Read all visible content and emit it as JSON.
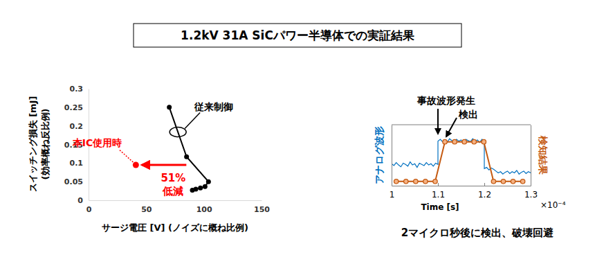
{
  "title": "1.2kV 31A SiCパワー半導体での実証結果",
  "chart_data": [
    {
      "type": "line",
      "xlabel": "サージ電圧 [V] (ノイズに概ね比例)",
      "ylabel": "スイッチング損失 [mJ]\n(効率概ね反比例)",
      "xlim": [
        0,
        150
      ],
      "xticks": [
        0,
        50,
        100,
        150
      ],
      "ylim": [
        0,
        0.3
      ],
      "yticks": [
        0,
        0.05,
        0.1,
        0.15,
        0.2,
        0.25,
        0.3
      ],
      "grid": false,
      "series": [
        {
          "name": "従来制御",
          "color": "#000000",
          "marker": "circle",
          "line_style": "solid",
          "x": [
            70,
            85,
            104,
            101,
            97,
            93,
            90
          ],
          "values": [
            0.25,
            0.117,
            0.05,
            0.037,
            0.033,
            0.03,
            0.027
          ]
        },
        {
          "name": "本IC使用時",
          "color": "#ff0000",
          "marker": "circle",
          "type": "scatter",
          "x": [
            41
          ],
          "values": [
            0.095
          ]
        }
      ],
      "annotations": [
        "51%",
        "低減"
      ]
    },
    {
      "type": "line",
      "title": "2マイクロ秒後に検出、破壊回避",
      "xlabel": "Time [s]",
      "xlim": [
        1,
        1.3
      ],
      "xticks": [
        1,
        1.1,
        1.2,
        1.3
      ],
      "ylim": [
        0,
        1
      ],
      "y2lim": [
        0,
        1
      ],
      "tick_labels": "x",
      "grid": false,
      "series": [
        {
          "name": "アナログ波形",
          "color": "#0070c0",
          "line_style": "solid",
          "axis": "y",
          "x": [
            1,
            1.005,
            1.01,
            1.015,
            1.02,
            1.025,
            1.03,
            1.035,
            1.04,
            1.045,
            1.05,
            1.055,
            1.06,
            1.065,
            1.07,
            1.075,
            1.08,
            1.085,
            1.09,
            1.095,
            1.1,
            1.1,
            1.105,
            1.11,
            1.115,
            1.12,
            1.125,
            1.13,
            1.135,
            1.14,
            1.145,
            1.15,
            1.155,
            1.16,
            1.165,
            1.17,
            1.175,
            1.18,
            1.185,
            1.19,
            1.195,
            1.2,
            1.2,
            1.205,
            1.21,
            1.215,
            1.22,
            1.225,
            1.23,
            1.235,
            1.24,
            1.245,
            1.25,
            1.255,
            1.26,
            1.265,
            1.27,
            1.275,
            1.28,
            1.285,
            1.29,
            1.295,
            1.3
          ],
          "values": [
            0.36,
            0.33,
            0.38,
            0.34,
            0.31,
            0.37,
            0.35,
            0.32,
            0.39,
            0.34,
            0.36,
            0.3,
            0.37,
            0.35,
            0.33,
            0.38,
            0.34,
            0.36,
            0.32,
            0.37,
            0.35,
            0.73,
            0.76,
            0.72,
            0.75,
            0.71,
            0.77,
            0.74,
            0.72,
            0.76,
            0.73,
            0.75,
            0.7,
            0.76,
            0.74,
            0.72,
            0.77,
            0.73,
            0.75,
            0.71,
            0.76,
            0.74,
            0.28,
            0.3,
            0.26,
            0.29,
            0.27,
            0.24,
            0.21,
            0.23,
            0.19,
            0.22,
            0.24,
            0.2,
            0.23,
            0.21,
            0.25,
            0.19,
            0.22,
            0.24,
            0.2,
            0.23,
            0.21
          ]
        },
        {
          "name": "検知結果",
          "color": "#c55a11",
          "marker": "circle",
          "line_style": "solid",
          "axis": "y2",
          "x": [
            1.01,
            1.031,
            1.052,
            1.073,
            1.094,
            1.115,
            1.136,
            1.157,
            1.178,
            1.199,
            1.22,
            1.241,
            1.262,
            1.283
          ],
          "values": [
            0.07,
            0.07,
            0.07,
            0.07,
            0.07,
            0.72,
            0.72,
            0.72,
            0.72,
            0.72,
            0.07,
            0.07,
            0.07,
            0.07
          ]
        }
      ],
      "annotations": [
        "事故波形発生",
        "検出",
        "×10⁻⁴"
      ]
    }
  ]
}
